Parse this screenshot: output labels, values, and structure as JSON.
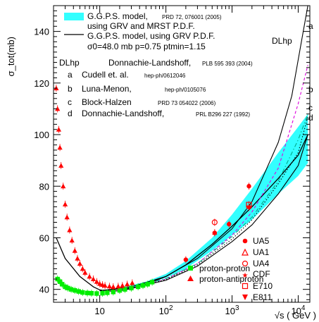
{
  "chart_data": {
    "type": "scatter",
    "ylabel": "σ_tot(mb)",
    "xlabel": "√s ( GeV )",
    "xscale": "log",
    "xlim": [
      2,
      15000
    ],
    "ylim": [
      35,
      150
    ],
    "grid": false,
    "x_tick_labels": [
      "10",
      "10^2",
      "10^3",
      "10^4"
    ],
    "y_tick_labels": [
      "40",
      "60",
      "80",
      "100",
      "120",
      "140"
    ],
    "x_ticks": [
      10,
      100,
      1000,
      10000
    ],
    "y_ticks": [
      40,
      60,
      80,
      100,
      120,
      140
    ],
    "legend_top": [
      {
        "key": "ggps_band",
        "text": "G.G.P.S. model,",
        "ref": "PRD 72, 076001 (2005)"
      },
      {
        "key": "ggps_band2",
        "text": "using GRV and MRST P.D.F.",
        "ref": ""
      },
      {
        "key": "ggps_line",
        "text": "G.G.P.S. model, using GRV P.D.F.",
        "ref": ""
      },
      {
        "key": "params",
        "text": "σ0=48.0 mb p=0.75 ptmin=1.15",
        "ref": ""
      }
    ],
    "legend_refs": [
      {
        "tag": "DLhp",
        "name": "Donnachie-Landshoff,",
        "ref": "PLB 595 393 (2004)"
      },
      {
        "tag": "a",
        "name": "Cudell et. al.",
        "ref": "hep-ph/0612046"
      },
      {
        "tag": "b",
        "name": "Luna-Menon,",
        "ref": "hep-ph/0105076"
      },
      {
        "tag": "c",
        "name": "Block-Halzen",
        "ref": "PRD 73 054022 (2006)"
      },
      {
        "tag": "d",
        "name": "Donnachie-Landshoff,",
        "ref": "PRL B296 227 (1992)"
      }
    ],
    "experiments": [
      "UA5",
      "UA1",
      "UA4",
      "CDF",
      "E710",
      "E811"
    ],
    "particle_legend": [
      "proton-proton",
      "proton-antiproton"
    ],
    "curve_labels": {
      "a": "a",
      "b": "b",
      "c": "c",
      "d": "d",
      "DLhp": "DLhp"
    },
    "series": [
      {
        "name": "proton-proton",
        "color": "#00ee00",
        "x": [
          2.3,
          2.5,
          2.7,
          3.0,
          3.3,
          3.7,
          4.2,
          4.8,
          5.5,
          6.5,
          7.5,
          9,
          11,
          13,
          16,
          20,
          24,
          30,
          38,
          45,
          53,
          62
        ],
        "y": [
          44,
          43,
          42,
          41,
          40.5,
          40,
          39.6,
          39.2,
          38.8,
          38.6,
          38.5,
          38.4,
          38.5,
          38.7,
          39.0,
          39.6,
          40.0,
          40.5,
          41.0,
          41.5,
          42.0,
          42.8
        ]
      },
      {
        "name": "proton-antiproton",
        "color": "#ff0000",
        "x": [
          2.2,
          2.3,
          2.4,
          2.5,
          2.6,
          2.8,
          3.0,
          3.2,
          3.5,
          3.8,
          4.2,
          4.6,
          5.0,
          5.5,
          6.0,
          7.0,
          8.0,
          9.0,
          10,
          11,
          12,
          14,
          16,
          19,
          22,
          26,
          31,
          546,
          1800
        ],
        "y": [
          118,
          110,
          102,
          95,
          88,
          80,
          73,
          68,
          63,
          59,
          55,
          52,
          50,
          48,
          46.5,
          45,
          44,
          43,
          42.2,
          41.8,
          41.5,
          41.2,
          41.0,
          41.2,
          41.5,
          42,
          42.5,
          62,
          72
        ]
      },
      {
        "name": "UA4",
        "color": "#ff0000",
        "x": [
          546
        ],
        "y": [
          66
        ]
      },
      {
        "name": "UA5",
        "color": "#ff0000",
        "x": [
          200,
          900
        ],
        "y": [
          51.5,
          65.3
        ]
      },
      {
        "name": "CDF",
        "color": "#ff0000",
        "x": [
          546,
          1800
        ],
        "y": [
          61.9,
          80.0
        ]
      },
      {
        "name": "E710",
        "color": "#ff0000",
        "x": [
          1800
        ],
        "y": [
          72.8
        ]
      },
      {
        "name": "E811",
        "color": "#ff0000",
        "x": [
          1800
        ],
        "y": [
          71.7
        ]
      }
    ],
    "ggps_band": {
      "x": [
        20,
        50,
        100,
        200,
        500,
        1000,
        2000,
        5000,
        10000,
        14000
      ],
      "low": [
        39.5,
        42,
        44.5,
        48,
        55,
        61,
        67,
        77,
        84,
        89
      ],
      "high": [
        40.5,
        43,
        46,
        51,
        60,
        69,
        79,
        93,
        103,
        108
      ]
    },
    "curves": [
      {
        "name": "ggps",
        "style": "solid",
        "x": [
          2.2,
          3,
          5,
          8,
          10,
          15,
          20,
          30,
          50,
          100,
          200,
          500,
          1000,
          2000,
          5000,
          10000,
          14000
        ],
        "y": [
          60,
          52,
          45,
          41,
          39.8,
          39.3,
          39.5,
          40.3,
          42,
          45,
          49.5,
          57.5,
          64.5,
          72,
          83,
          92,
          100
        ]
      },
      {
        "name": "DLhp",
        "style": "solid",
        "x": [
          10,
          30,
          100,
          300,
          1000,
          2000,
          5000,
          8000,
          11000,
          14000
        ],
        "y": [
          39.5,
          41,
          45,
          52,
          63.5,
          74,
          97,
          115,
          135,
          150
        ]
      },
      {
        "name": "a",
        "style": "dashed",
        "color": "#dd00dd",
        "x": [
          10,
          30,
          100,
          300,
          1000,
          2000,
          5000,
          10000,
          14000
        ],
        "y": [
          39.5,
          40.5,
          44,
          50,
          61,
          70,
          87,
          112,
          127
        ]
      },
      {
        "name": "b",
        "style": "dashdot",
        "color": "#00aa88",
        "x": [
          10,
          30,
          100,
          300,
          1000,
          2000,
          5000,
          10000,
          14000
        ],
        "y": [
          39.5,
          40.6,
          44.2,
          50,
          60.5,
          68,
          82,
          98,
          108
        ]
      },
      {
        "name": "c",
        "style": "dotted",
        "color": "#000000",
        "x": [
          10,
          30,
          100,
          300,
          1000,
          2000,
          5000,
          10000,
          14000
        ],
        "y": [
          39.5,
          40.5,
          43.8,
          49.5,
          59.5,
          67,
          81,
          93,
          107
        ]
      },
      {
        "name": "d",
        "style": "solid",
        "color": "#000000",
        "x": [
          10,
          30,
          100,
          300,
          1000,
          2000,
          5000,
          10000,
          14000
        ],
        "y": [
          39.5,
          40.5,
          43.5,
          49,
          58.5,
          65,
          77,
          88,
          100
        ]
      }
    ]
  }
}
